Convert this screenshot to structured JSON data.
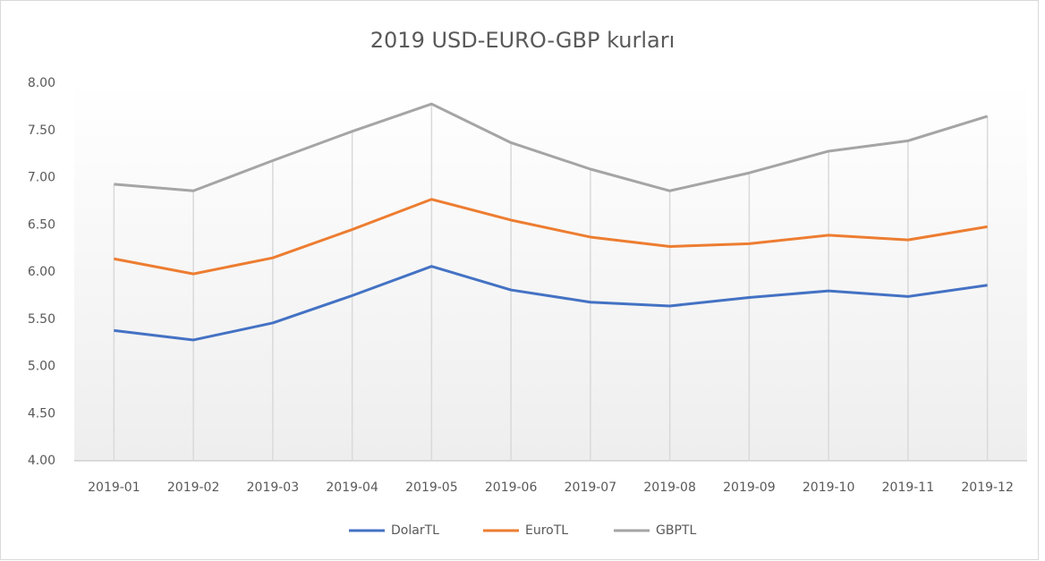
{
  "chart_data": {
    "type": "line",
    "title": "2019 USD-EURO-GBP  kurları",
    "categories": [
      "2019-01",
      "2019-02",
      "2019-03",
      "2019-04",
      "2019-05",
      "2019-06",
      "2019-07",
      "2019-08",
      "2019-09",
      "2019-10",
      "2019-11",
      "2019-12"
    ],
    "series": [
      {
        "name": "DolarTL",
        "color": "#4472c4",
        "values": [
          5.38,
          5.28,
          5.46,
          5.75,
          6.06,
          5.81,
          5.68,
          5.64,
          5.73,
          5.8,
          5.74,
          5.86
        ]
      },
      {
        "name": "EuroTL",
        "color": "#ed7d31",
        "values": [
          6.14,
          5.98,
          6.15,
          6.45,
          6.77,
          6.55,
          6.37,
          6.27,
          6.3,
          6.39,
          6.34,
          6.48
        ]
      },
      {
        "name": "GBPTL",
        "color": "#a5a5a5",
        "values": [
          6.93,
          6.86,
          7.18,
          7.49,
          7.78,
          7.37,
          7.09,
          6.86,
          7.05,
          7.28,
          7.39,
          7.65
        ]
      }
    ],
    "ylim": [
      4,
      8
    ],
    "yticks": [
      {
        "value": 4,
        "label": "4.00"
      },
      {
        "value": 4.5,
        "label": "4.50"
      },
      {
        "value": 5,
        "label": "5.00"
      },
      {
        "value": 5.5,
        "label": "5.50"
      },
      {
        "value": 6,
        "label": "6.00"
      },
      {
        "value": 6.5,
        "label": "6.50"
      },
      {
        "value": 7,
        "label": "7.00"
      },
      {
        "value": 7.5,
        "label": "7.50"
      },
      {
        "value": 8,
        "label": "8.00"
      }
    ],
    "grid": false,
    "drop_lines": true,
    "legend": "bottom"
  }
}
